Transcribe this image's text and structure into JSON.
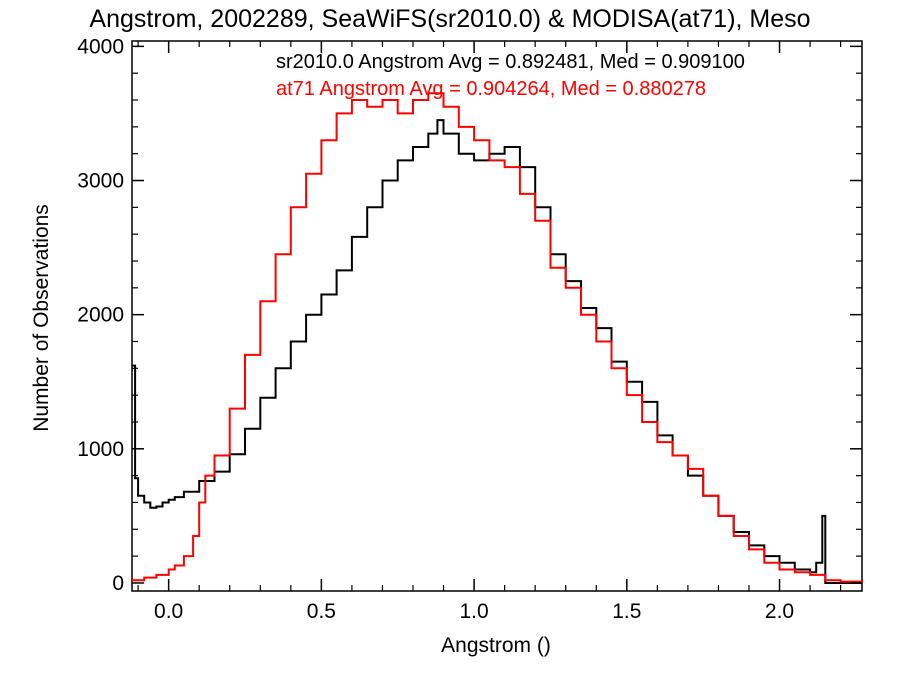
{
  "chart_data": {
    "type": "line",
    "step": true,
    "title": "Angstrom, 2002289, SeaWiFS(sr2010.0) & MODISA(at71), Meso",
    "xlabel": "Angstrom ()",
    "ylabel": "Number of Observations",
    "xlim": [
      -0.12,
      2.27
    ],
    "ylim": [
      -60,
      4040
    ],
    "xticks": [
      0.0,
      0.5,
      1.0,
      1.5,
      2.0
    ],
    "xtick_labels": [
      "0.0",
      "0.5",
      "1.0",
      "1.5",
      "2.0"
    ],
    "yticks": [
      0,
      1000,
      2000,
      3000,
      4000
    ],
    "ytick_labels": [
      "0",
      "1000",
      "2000",
      "3000",
      "4000"
    ],
    "grid": false,
    "annotations": [
      {
        "text": "sr2010.0 Angstrom Avg = 0.892481, Med = 0.909100",
        "color": "#000000"
      },
      {
        "text": "at71 Angstrom Avg = 0.904264, Med = 0.880278",
        "color": "#ff0000"
      }
    ],
    "series": [
      {
        "color": "#000000",
        "x": [
          -0.12,
          -0.11,
          -0.1,
          -0.08,
          -0.06,
          -0.04,
          -0.02,
          0.0,
          0.02,
          0.05,
          0.1,
          0.15,
          0.2,
          0.25,
          0.3,
          0.35,
          0.4,
          0.45,
          0.5,
          0.55,
          0.6,
          0.65,
          0.7,
          0.75,
          0.8,
          0.85,
          0.88,
          0.9,
          0.95,
          1.0,
          1.05,
          1.1,
          1.15,
          1.2,
          1.25,
          1.3,
          1.35,
          1.4,
          1.45,
          1.5,
          1.55,
          1.6,
          1.65,
          1.7,
          1.75,
          1.8,
          1.85,
          1.9,
          1.95,
          2.0,
          2.05,
          2.1,
          2.12,
          2.14,
          2.15,
          2.2,
          2.27
        ],
        "y": [
          1620,
          780,
          650,
          600,
          560,
          570,
          600,
          620,
          640,
          680,
          760,
          830,
          960,
          1150,
          1380,
          1600,
          1800,
          2000,
          2150,
          2330,
          2580,
          2800,
          3000,
          3150,
          3250,
          3350,
          3450,
          3350,
          3200,
          3150,
          3200,
          3250,
          3100,
          2800,
          2450,
          2250,
          2050,
          1900,
          1650,
          1500,
          1350,
          1100,
          950,
          800,
          650,
          500,
          380,
          280,
          200,
          150,
          100,
          80,
          150,
          500,
          0,
          0,
          0
        ]
      },
      {
        "color": "#ff0000",
        "x": [
          -0.12,
          -0.08,
          -0.04,
          0.0,
          0.02,
          0.05,
          0.08,
          0.1,
          0.12,
          0.15,
          0.2,
          0.25,
          0.3,
          0.35,
          0.4,
          0.45,
          0.5,
          0.55,
          0.6,
          0.65,
          0.7,
          0.75,
          0.8,
          0.85,
          0.9,
          0.95,
          1.0,
          1.05,
          1.1,
          1.15,
          1.2,
          1.25,
          1.3,
          1.35,
          1.4,
          1.45,
          1.5,
          1.55,
          1.6,
          1.65,
          1.7,
          1.75,
          1.8,
          1.85,
          1.9,
          1.95,
          2.0,
          2.05,
          2.1,
          2.15,
          2.2,
          2.27
        ],
        "y": [
          20,
          40,
          60,
          100,
          130,
          200,
          350,
          600,
          800,
          950,
          1300,
          1700,
          2100,
          2450,
          2800,
          3050,
          3300,
          3500,
          3600,
          3550,
          3600,
          3500,
          3600,
          3650,
          3550,
          3400,
          3300,
          3150,
          3100,
          2900,
          2700,
          2350,
          2200,
          2000,
          1800,
          1600,
          1400,
          1200,
          1050,
          950,
          850,
          650,
          500,
          350,
          250,
          150,
          100,
          80,
          60,
          20,
          10,
          0
        ]
      }
    ]
  }
}
